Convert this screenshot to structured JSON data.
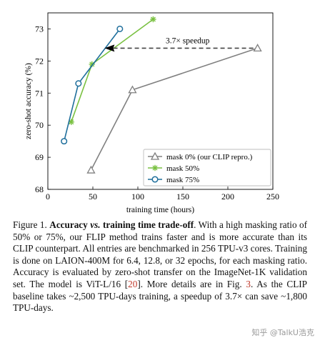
{
  "chart_data": {
    "type": "line",
    "xlabel": "training time (hours)",
    "ylabel": "zero-shot accuracy (%)",
    "xlim": [
      0,
      250
    ],
    "ylim": [
      68,
      73.5
    ],
    "x_ticks": [
      "0",
      "50",
      "100",
      "150",
      "200",
      "250"
    ],
    "y_ticks": [
      "68",
      "69",
      "70",
      "71",
      "72",
      "73"
    ],
    "grid": false,
    "legend_position": "bottom-right",
    "series": [
      {
        "name": "mask 0% (our CLIP repro.)",
        "color": "#808080",
        "marker": "triangle",
        "x": [
          48,
          94,
          233
        ],
        "y": [
          68.6,
          71.1,
          72.4
        ]
      },
      {
        "name": "mask 50%",
        "color": "#7ac142",
        "marker": "star",
        "x": [
          26,
          49,
          117
        ],
        "y": [
          70.1,
          71.9,
          73.3
        ]
      },
      {
        "name": "mask 75%",
        "color": "#1f6f9c",
        "marker": "circle",
        "x": [
          18,
          34,
          80
        ],
        "y": [
          69.5,
          71.3,
          73.0
        ]
      }
    ],
    "annotation": {
      "text": "3.7× speedup",
      "from": [
        233,
        72.4
      ],
      "to": [
        63,
        72.4
      ]
    }
  },
  "caption": {
    "figure_label": "Figure 1.",
    "title": "Accuracy",
    "vs": "vs.",
    "title_rest": "training time trade-off",
    "body_1": ". With a high masking ratio of 50% or 75%, our FLIP method trains faster and is more accurate than its CLIP counterpart. All entries are benchmarked in 256 TPU-v3 cores. Training is done on LAION-400M for 6.4, 12.8, or 32 epochs, for each masking ratio. Accuracy is evaluated by zero-shot transfer on the ImageNet-1K validation set. The model is ViT-L/16 [",
    "ref_1": "20",
    "body_2": "]. More details are in Fig. ",
    "ref_2": "3",
    "body_3": ". As the CLIP baseline takes ~2,500 TPU-days training, a speedup of 3.7× can save ~1,800 TPU-days."
  },
  "watermark": "知乎 @TalkU浩克"
}
